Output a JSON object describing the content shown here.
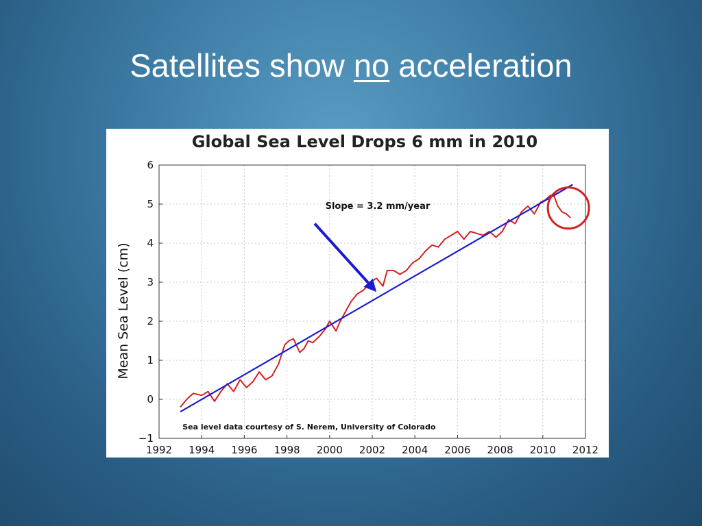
{
  "slide": {
    "title_before": "Satellites show ",
    "title_emphasis": "no",
    "title_after": " acceleration",
    "background_color": "#3f7fa8"
  },
  "chart_data": {
    "type": "line",
    "title": "Global Sea Level Drops 6 mm in 2010",
    "xlabel": "",
    "ylabel": "Mean Sea Level (cm)",
    "xlim": [
      1992,
      2012
    ],
    "ylim": [
      -1,
      6
    ],
    "x_ticks": [
      1992,
      1994,
      1996,
      1998,
      2000,
      2002,
      2004,
      2006,
      2008,
      2010,
      2012
    ],
    "y_ticks": [
      -1,
      0,
      1,
      2,
      3,
      4,
      5,
      6
    ],
    "x_tick_labels": [
      "1992",
      "1994",
      "1996",
      "1998",
      "2000",
      "2002",
      "2004",
      "2006",
      "2008",
      "2010",
      "2012"
    ],
    "y_tick_labels": [
      "−1",
      "0",
      "1",
      "2",
      "3",
      "4",
      "5",
      "6"
    ],
    "grid": true,
    "series": [
      {
        "color": "#d42020",
        "x": [
          1993.0,
          1993.3,
          1993.6,
          1994.0,
          1994.3,
          1994.6,
          1994.9,
          1995.2,
          1995.5,
          1995.8,
          1996.1,
          1996.4,
          1996.7,
          1997.0,
          1997.3,
          1997.6,
          1997.9,
          1998.1,
          1998.3,
          1998.6,
          1998.8,
          1999.0,
          1999.2,
          1999.5,
          1999.8,
          2000.0,
          2000.3,
          2000.5,
          2000.8,
          2001.0,
          2001.3,
          2001.6,
          2001.9,
          2002.2,
          2002.5,
          2002.7,
          2003.0,
          2003.3,
          2003.6,
          2003.9,
          2004.2,
          2004.5,
          2004.8,
          2005.1,
          2005.4,
          2005.7,
          2006.0,
          2006.3,
          2006.6,
          2006.9,
          2007.2,
          2007.5,
          2007.8,
          2008.1,
          2008.4,
          2008.7,
          2009.0,
          2009.3,
          2009.6,
          2009.9,
          2010.1,
          2010.3,
          2010.5,
          2010.7,
          2010.9,
          2011.1,
          2011.3
        ],
        "values": [
          -0.2,
          0.0,
          0.15,
          0.1,
          0.2,
          -0.05,
          0.2,
          0.4,
          0.2,
          0.5,
          0.3,
          0.45,
          0.7,
          0.5,
          0.6,
          0.9,
          1.4,
          1.5,
          1.55,
          1.2,
          1.3,
          1.5,
          1.45,
          1.6,
          1.8,
          2.0,
          1.75,
          2.0,
          2.3,
          2.5,
          2.7,
          2.8,
          3.0,
          3.1,
          2.9,
          3.3,
          3.3,
          3.2,
          3.3,
          3.5,
          3.6,
          3.8,
          3.95,
          3.9,
          4.1,
          4.2,
          4.3,
          4.1,
          4.3,
          4.25,
          4.2,
          4.3,
          4.15,
          4.3,
          4.6,
          4.5,
          4.8,
          4.95,
          4.75,
          5.05,
          5.1,
          5.2,
          5.25,
          4.95,
          4.8,
          4.75,
          4.65
        ]
      },
      {
        "color": "#1a1ad4",
        "x": [
          1993.0,
          2011.4
        ],
        "values": [
          -0.32,
          5.5
        ]
      }
    ],
    "annotations": [
      {
        "text": "Slope = 3.2 mm/year",
        "x": 1999.8,
        "y": 4.95
      },
      {
        "text": "Sea level data courtesy of S. Nerem, University of Colorado",
        "x": 1993.1,
        "y": -0.7
      }
    ],
    "highlight": {
      "shape": "circle",
      "x": 2011.2,
      "y": 4.9
    },
    "arrow": {
      "from": [
        1999.3,
        4.5
      ],
      "to": [
        2002.2,
        2.75
      ]
    }
  }
}
